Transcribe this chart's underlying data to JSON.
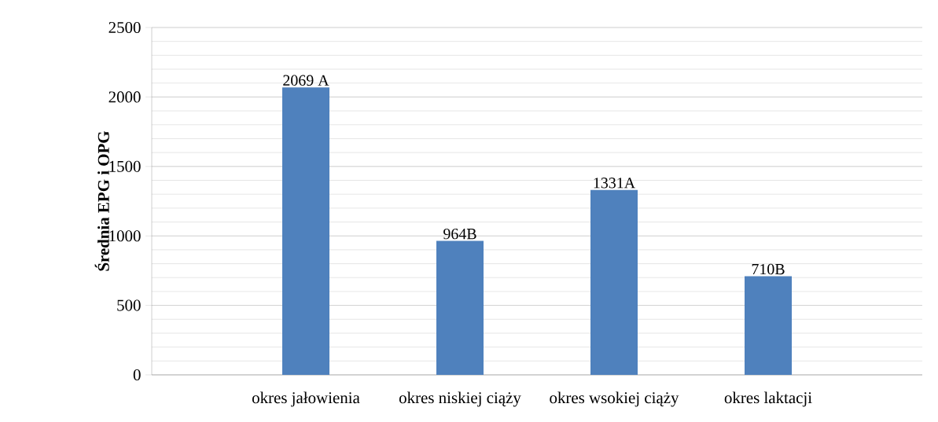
{
  "chart_data": {
    "type": "bar",
    "ylabel": "Średnia EPG i OPG",
    "categories": [
      "okres jałowienia",
      "okres niskiej ciąży",
      "okres wsokiej ciąży",
      "okres laktacji"
    ],
    "values": [
      2069,
      964,
      1331,
      710
    ],
    "value_labels": [
      "2069 A",
      "964B",
      "1331A",
      "710B"
    ],
    "color": "#4f81bd",
    "ylim": [
      0,
      2500
    ],
    "yticks": [
      0,
      500,
      1000,
      1500,
      2000,
      2500
    ],
    "grid": "y"
  }
}
